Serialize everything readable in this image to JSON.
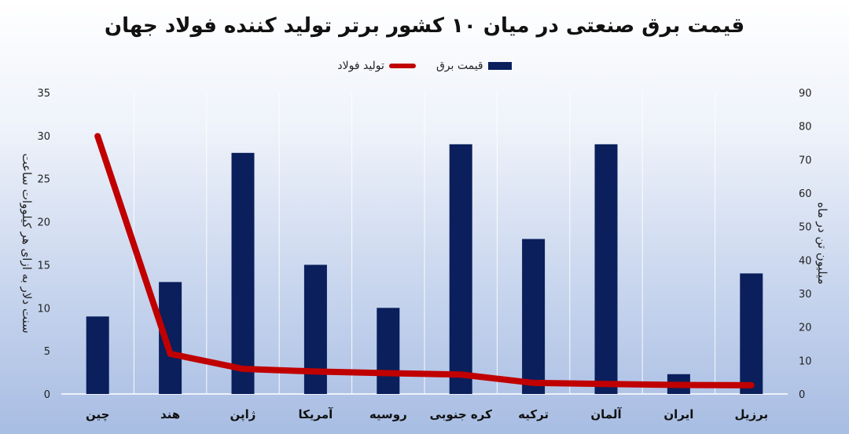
{
  "chart_data": {
    "type": "bar",
    "title": "قیمت برق صنعتی در میان ۱۰ کشور برتر تولید کننده فولاد جهان",
    "categories": [
      "چین",
      "هند",
      "ژاپن",
      "آمریکا",
      "روسیه",
      "کره جنوبی",
      "ترکیه",
      "آلمان",
      "ایران",
      "برزیل"
    ],
    "series": [
      {
        "name": "قیمت برق",
        "type": "bar",
        "axis": "left",
        "color": "#0a1f5c",
        "values": [
          9,
          13,
          28,
          15,
          10,
          29,
          18,
          29,
          2.3,
          14
        ]
      },
      {
        "name": "تولید فولاد",
        "type": "line",
        "axis": "right",
        "color": "#c00000",
        "values": [
          77,
          12,
          7.5,
          6.7,
          6.2,
          5.8,
          3.3,
          3.0,
          2.7,
          2.6
        ]
      }
    ],
    "ylabel_left": "سنت دلار به ازای هر کیلووات ساعت",
    "ylabel_right": "میلیون تن در ماه",
    "ylim_left": [
      0,
      35
    ],
    "yticks_left": [
      0,
      5,
      10,
      15,
      20,
      25,
      30,
      35
    ],
    "ylim_right": [
      0,
      90
    ],
    "yticks_right": [
      0,
      10,
      20,
      30,
      40,
      50,
      60,
      70,
      80,
      90
    ],
    "grid": "vertical",
    "legend_position": "top"
  }
}
